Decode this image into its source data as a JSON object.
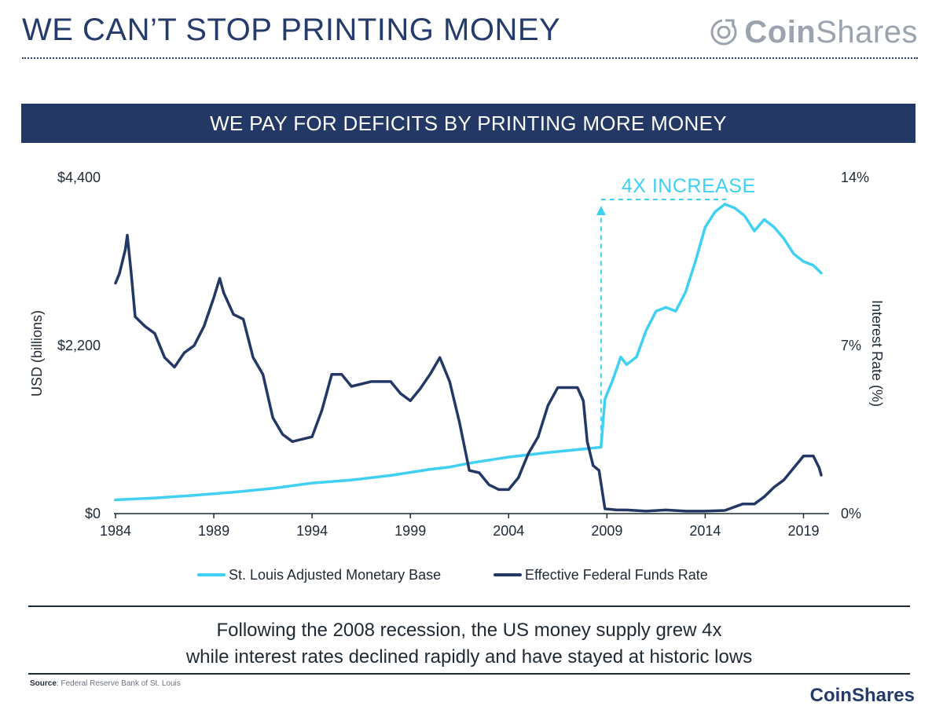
{
  "header": {
    "title": "WE CAN’T STOP PRINTING MONEY",
    "logo_bold": "Coin",
    "logo_light": "Shares"
  },
  "banner": {
    "title": "WE PAY FOR DEFICITS BY PRINTING MORE MONEY"
  },
  "chart_data": {
    "type": "line",
    "title": "WE PAY FOR DEFICITS BY PRINTING MORE MONEY",
    "xlabel": "",
    "x_ticks": [
      "1984",
      "1989",
      "1994",
      "1999",
      "2004",
      "2009",
      "2014",
      "2019"
    ],
    "xlim": [
      1984,
      2020.3
    ],
    "y_left": {
      "label": "USD (billions)",
      "ticks": [
        "$0",
        "$2,200",
        "$4,400"
      ],
      "lim": [
        0,
        4400
      ]
    },
    "y_right": {
      "label": "Interest Rate (%)",
      "ticks": [
        "0%",
        "7%",
        "14%"
      ],
      "lim": [
        0,
        14
      ]
    },
    "grid": false,
    "legend": "bottom-center",
    "annotation": {
      "text": "4X INCREASE"
    },
    "series": [
      {
        "name": "St. Louis Adjusted Monetary Base",
        "axis": "left",
        "color": "#3fd0f2",
        "points": [
          [
            1984.0,
            180
          ],
          [
            1986.0,
            205
          ],
          [
            1988.0,
            240
          ],
          [
            1990.0,
            280
          ],
          [
            1992.0,
            330
          ],
          [
            1994.0,
            400
          ],
          [
            1996.0,
            440
          ],
          [
            1998.0,
            500
          ],
          [
            2000.0,
            580
          ],
          [
            2001.0,
            610
          ],
          [
            2002.0,
            660
          ],
          [
            2004.0,
            740
          ],
          [
            2006.0,
            800
          ],
          [
            2008.0,
            850
          ],
          [
            2008.7,
            870
          ],
          [
            2008.9,
            1500
          ],
          [
            2009.3,
            1750
          ],
          [
            2009.7,
            2050
          ],
          [
            2010.0,
            1950
          ],
          [
            2010.5,
            2050
          ],
          [
            2011.0,
            2400
          ],
          [
            2011.5,
            2650
          ],
          [
            2012.0,
            2700
          ],
          [
            2012.5,
            2650
          ],
          [
            2013.0,
            2900
          ],
          [
            2013.5,
            3300
          ],
          [
            2014.0,
            3750
          ],
          [
            2014.5,
            3950
          ],
          [
            2015.0,
            4050
          ],
          [
            2015.5,
            4000
          ],
          [
            2016.0,
            3900
          ],
          [
            2016.5,
            3700
          ],
          [
            2017.0,
            3850
          ],
          [
            2017.5,
            3750
          ],
          [
            2018.0,
            3600
          ],
          [
            2018.5,
            3400
          ],
          [
            2019.0,
            3300
          ],
          [
            2019.5,
            3250
          ],
          [
            2019.9,
            3150
          ]
        ]
      },
      {
        "name": "Effective Federal Funds Rate",
        "axis": "right",
        "color": "#233865",
        "points": [
          [
            1984.0,
            9.6
          ],
          [
            1984.2,
            10.0
          ],
          [
            1984.5,
            11.0
          ],
          [
            1984.6,
            11.6
          ],
          [
            1984.8,
            10.0
          ],
          [
            1985.0,
            8.2
          ],
          [
            1985.5,
            7.8
          ],
          [
            1986.0,
            7.5
          ],
          [
            1986.5,
            6.5
          ],
          [
            1987.0,
            6.1
          ],
          [
            1987.5,
            6.7
          ],
          [
            1988.0,
            7.0
          ],
          [
            1988.5,
            7.8
          ],
          [
            1989.0,
            9.0
          ],
          [
            1989.3,
            9.8
          ],
          [
            1989.5,
            9.2
          ],
          [
            1990.0,
            8.3
          ],
          [
            1990.5,
            8.1
          ],
          [
            1991.0,
            6.5
          ],
          [
            1991.5,
            5.8
          ],
          [
            1992.0,
            4.0
          ],
          [
            1992.5,
            3.3
          ],
          [
            1993.0,
            3.0
          ],
          [
            1994.0,
            3.2
          ],
          [
            1994.5,
            4.3
          ],
          [
            1995.0,
            5.8
          ],
          [
            1995.5,
            5.8
          ],
          [
            1996.0,
            5.3
          ],
          [
            1997.0,
            5.5
          ],
          [
            1998.0,
            5.5
          ],
          [
            1998.5,
            5.0
          ],
          [
            1999.0,
            4.7
          ],
          [
            1999.5,
            5.2
          ],
          [
            2000.0,
            5.8
          ],
          [
            2000.5,
            6.5
          ],
          [
            2001.0,
            5.5
          ],
          [
            2001.5,
            3.8
          ],
          [
            2002.0,
            1.8
          ],
          [
            2002.5,
            1.7
          ],
          [
            2003.0,
            1.2
          ],
          [
            2003.5,
            1.0
          ],
          [
            2004.0,
            1.0
          ],
          [
            2004.5,
            1.5
          ],
          [
            2005.0,
            2.5
          ],
          [
            2005.5,
            3.2
          ],
          [
            2006.0,
            4.5
          ],
          [
            2006.5,
            5.25
          ],
          [
            2007.0,
            5.25
          ],
          [
            2007.5,
            5.25
          ],
          [
            2007.8,
            4.7
          ],
          [
            2008.0,
            3.0
          ],
          [
            2008.3,
            2.0
          ],
          [
            2008.6,
            1.8
          ],
          [
            2008.9,
            0.2
          ],
          [
            2009.5,
            0.15
          ],
          [
            2010.0,
            0.15
          ],
          [
            2011.0,
            0.1
          ],
          [
            2012.0,
            0.15
          ],
          [
            2013.0,
            0.1
          ],
          [
            2014.0,
            0.1
          ],
          [
            2015.0,
            0.13
          ],
          [
            2015.9,
            0.4
          ],
          [
            2016.5,
            0.4
          ],
          [
            2017.0,
            0.7
          ],
          [
            2017.5,
            1.1
          ],
          [
            2018.0,
            1.4
          ],
          [
            2018.5,
            1.9
          ],
          [
            2019.0,
            2.4
          ],
          [
            2019.5,
            2.4
          ],
          [
            2019.8,
            1.9
          ],
          [
            2019.9,
            1.6
          ]
        ]
      }
    ]
  },
  "caption": {
    "line1": "Following the 2008 recession, the US money supply grew 4x",
    "line2": "while interest rates declined rapidly and have stayed at historic lows"
  },
  "source": {
    "label": "Source",
    "text": ": Federal Reserve Bank of St. Louis"
  },
  "footer": {
    "logo": "CoinShares"
  },
  "colors": {
    "navy": "#233865",
    "cyan": "#3fd0f2",
    "logo_gray": "#9aa3ae"
  },
  "icons": {
    "logo": "coinshares-logo-icon"
  }
}
